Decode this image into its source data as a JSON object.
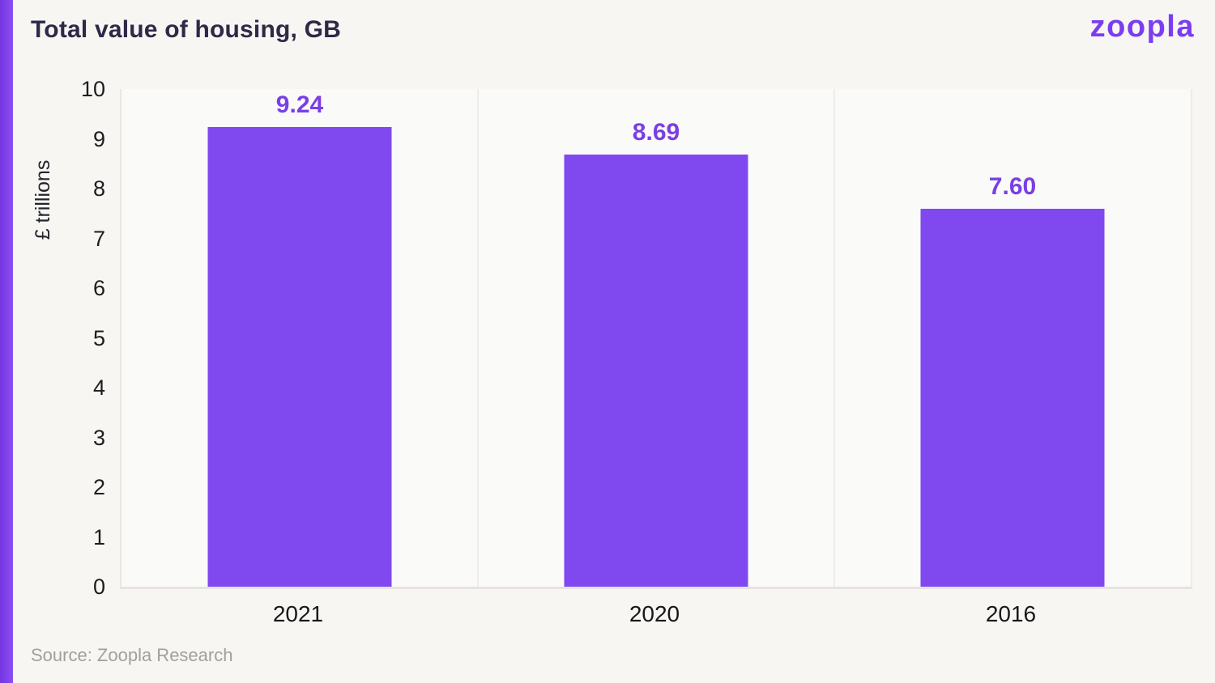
{
  "page": {
    "title": "Total value of housing, GB",
    "logo_text": "zoopla",
    "source": "Source: Zoopla Research"
  },
  "chart_data": {
    "type": "bar",
    "title": "Total value of housing, GB",
    "categories": [
      "2021",
      "2020",
      "2016"
    ],
    "values": [
      9.24,
      8.69,
      7.6
    ],
    "value_labels": [
      "9.24",
      "8.69",
      "7.60"
    ],
    "xlabel": "",
    "ylabel": "£ trillions",
    "ylim": [
      0,
      10
    ],
    "yticks": [
      0,
      1,
      2,
      3,
      4,
      5,
      6,
      7,
      8,
      9,
      10
    ],
    "grid": "vertical category separators only",
    "legend_position": "none",
    "bar_color": "#8048ef",
    "value_label_color": "#7a3fe4",
    "accent_color": "#7b3cf2",
    "background_color": "#f7f6f3",
    "plot_background_color": "#fafaf8"
  }
}
